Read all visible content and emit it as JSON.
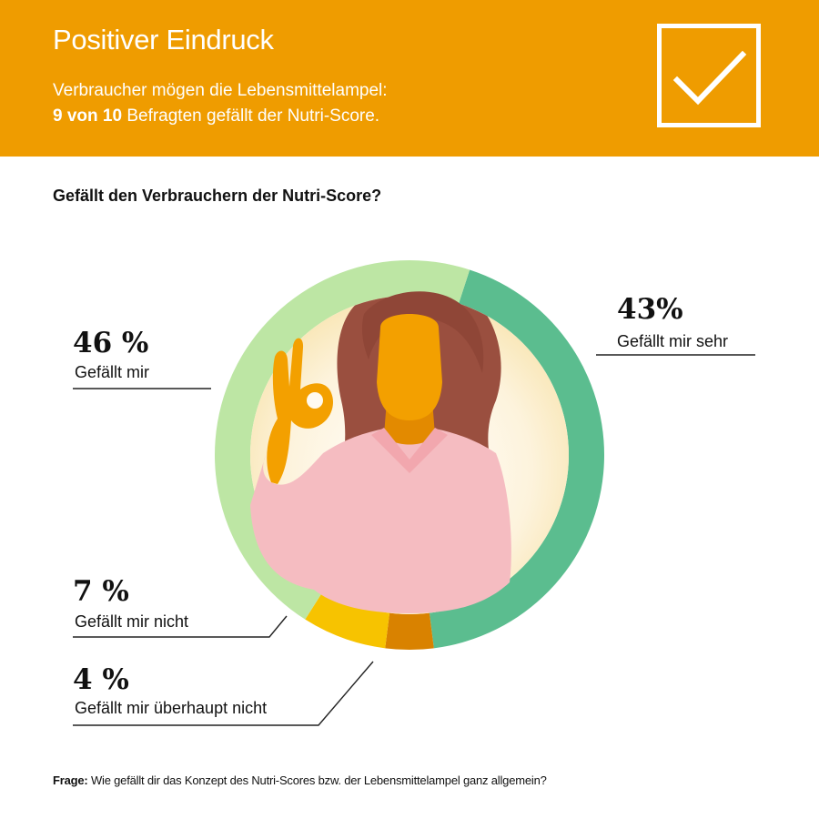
{
  "header": {
    "title": "Positiver Eindruck",
    "subtitle_line1": "Verbraucher mögen die Lebensmittelampel:",
    "subtitle_line2_bold": "9 von 10",
    "subtitle_line2_rest": " Befragten gefällt der Nutri-Score.",
    "icon": "checkmark-icon"
  },
  "question": "Gefällt den Verbrauchern der Nutri-Score?",
  "footnote": {
    "label": "Frage:",
    "text": " Wie gefällt dir das Konzept des Nutri-Scores bzw. der Lebensmittelampel ganz allgemein?"
  },
  "colors": {
    "header_bg": "#ef9c00",
    "gefaellt_mir_sehr": "#5bbd8f",
    "gefaellt_mir": "#bde6a4",
    "gefaellt_mir_nicht": "#f7c300",
    "gefaellt_mir_ueberhaupt_nicht": "#d98200"
  },
  "chart_data": {
    "type": "pie",
    "donut": true,
    "title": "Gefällt den Verbrauchern der Nutri-Score?",
    "slices": [
      {
        "label": "Gefällt mir sehr",
        "value": 43,
        "value_label": "43%",
        "color": "#5bbd8f"
      },
      {
        "label": "Gefällt mir überhaupt nicht",
        "value": 4,
        "value_label": "4 %",
        "color": "#d98200"
      },
      {
        "label": "Gefällt mir nicht",
        "value": 7,
        "value_label": "7 %",
        "color": "#f7c300"
      },
      {
        "label": "Gefällt mir",
        "value": 46,
        "value_label": "46 %",
        "color": "#bde6a4"
      }
    ]
  }
}
